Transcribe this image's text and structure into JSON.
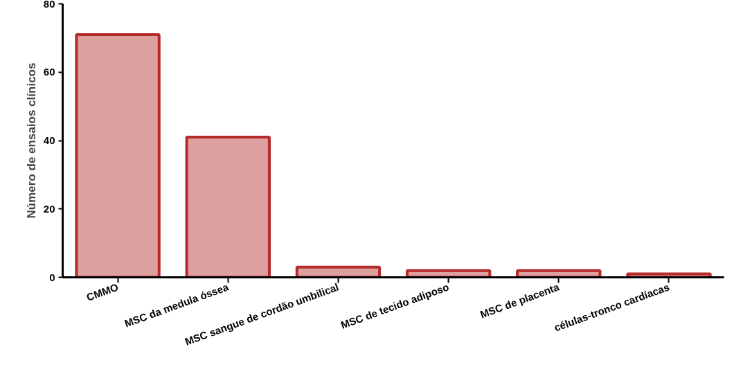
{
  "chart_data": {
    "type": "bar",
    "ylabel": "Número de ensaios clínicos",
    "categories": [
      "CMMO",
      "MSC da medula óssea",
      "MSC sangue de cordão umbilical",
      "MSC de tecido adiposo",
      "MSC de placenta",
      "células-tronco cardíacas"
    ],
    "values": [
      71,
      41,
      3,
      2,
      2,
      1
    ],
    "color": "#b52a2a",
    "ylim": [
      0,
      80
    ],
    "yticks": [
      0,
      20,
      40,
      60,
      80
    ],
    "grid": false
  }
}
